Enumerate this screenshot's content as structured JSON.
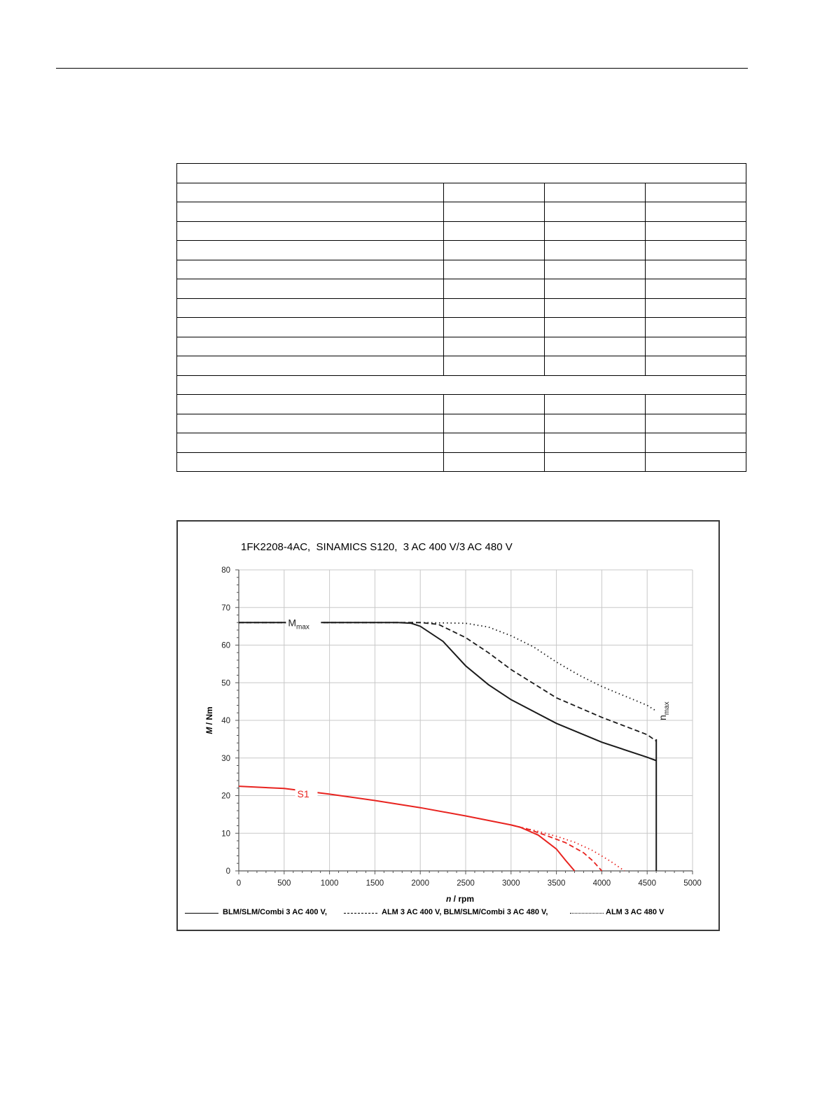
{
  "page": {
    "table": {
      "rows": [
        {
          "kind": "full"
        },
        {
          "kind": "split"
        },
        {
          "kind": "split"
        },
        {
          "kind": "split"
        },
        {
          "kind": "split"
        },
        {
          "kind": "split"
        },
        {
          "kind": "split"
        },
        {
          "kind": "split"
        },
        {
          "kind": "split"
        },
        {
          "kind": "split"
        },
        {
          "kind": "split"
        },
        {
          "kind": "full"
        },
        {
          "kind": "split"
        },
        {
          "kind": "split"
        },
        {
          "kind": "split"
        },
        {
          "kind": "split"
        }
      ]
    }
  },
  "chart_data": {
    "type": "line",
    "title": "1FK2208-4AC,  SINAMICS S120,  3 AC 400 V/3 AC 480 V",
    "xlabel_italic": "n",
    "xlabel_rest": " / rpm",
    "ylabel_italic": "M",
    "ylabel_rest": " / Nm",
    "xlim": [
      0,
      5000
    ],
    "ylim": [
      0,
      80
    ],
    "xticks": [
      0,
      500,
      1000,
      1500,
      2000,
      2500,
      3000,
      3500,
      4000,
      4500,
      5000
    ],
    "yticks": [
      0,
      10,
      20,
      30,
      40,
      50,
      60,
      70,
      80
    ],
    "grid": true,
    "colors": {
      "max": "#1a1a1a",
      "s1": "#e8231f",
      "grid": "#c8c8c8"
    },
    "annotations": [
      {
        "text": "M",
        "sub": "max",
        "x": 620,
        "y": 66
      },
      {
        "text": "S1",
        "x": 760,
        "y": 20.5
      },
      {
        "text": "n",
        "sub": "max",
        "x": 4630,
        "y": 40,
        "rotate": true
      }
    ],
    "legend": [
      {
        "label": "BLM/SLM/Combi 3 AC 400 V,",
        "style": "solid"
      },
      {
        "label": "ALM 3 AC 400 V, BLM/SLM/Combi 3 AC 480 V,",
        "style": "dashed"
      },
      {
        "label": "ALM 3 AC 480 V",
        "style": "dotted"
      }
    ],
    "series": [
      {
        "group": "max",
        "style": "solid",
        "x": [
          0,
          1000,
          1750,
          1900,
          2000,
          2250,
          2500,
          2750,
          3000,
          3500,
          4000,
          4500,
          4600
        ],
        "y": [
          66,
          66,
          66,
          65.8,
          65,
          61,
          54.5,
          49.5,
          45.5,
          39.2,
          34.2,
          30.2,
          29.3
        ]
      },
      {
        "group": "max",
        "style": "dashed",
        "x": [
          0,
          1000,
          2000,
          2200,
          2500,
          2750,
          3000,
          3500,
          4000,
          4500,
          4600
        ],
        "y": [
          66,
          66,
          66,
          65.5,
          62,
          58,
          53.5,
          46,
          40.8,
          36.2,
          34.5
        ]
      },
      {
        "group": "max",
        "style": "dotted",
        "x": [
          0,
          1000,
          2000,
          2500,
          2750,
          3000,
          3250,
          3500,
          3750,
          4000,
          4250,
          4500,
          4600
        ],
        "y": [
          66,
          66,
          66,
          65.8,
          64.8,
          62.5,
          59.5,
          55.5,
          52,
          49,
          46.5,
          44,
          42.5
        ]
      },
      {
        "group": "s1",
        "style": "solid",
        "x": [
          0,
          500,
          1000,
          1500,
          2000,
          2500,
          3000,
          3100,
          3300,
          3500,
          3600,
          3700
        ],
        "y": [
          22.5,
          21.9,
          20.4,
          18.7,
          16.8,
          14.6,
          12.2,
          11.6,
          9.5,
          5.8,
          2.8,
          0
        ]
      },
      {
        "group": "s1",
        "style": "dashed",
        "x": [
          3000,
          3200,
          3400,
          3600,
          3800,
          3900,
          4000
        ],
        "y": [
          12.2,
          11,
          9.3,
          7.5,
          4.8,
          2.7,
          0
        ]
      },
      {
        "group": "s1",
        "style": "dotted",
        "x": [
          3000,
          3300,
          3500,
          3700,
          3900,
          4100,
          4250
        ],
        "y": [
          12.2,
          10.5,
          9.2,
          7.6,
          5.4,
          2.5,
          0
        ]
      },
      {
        "group": "max",
        "style": "solid",
        "vertical": true,
        "x": [
          4600,
          4600
        ],
        "y": [
          0,
          35
        ]
      }
    ]
  }
}
